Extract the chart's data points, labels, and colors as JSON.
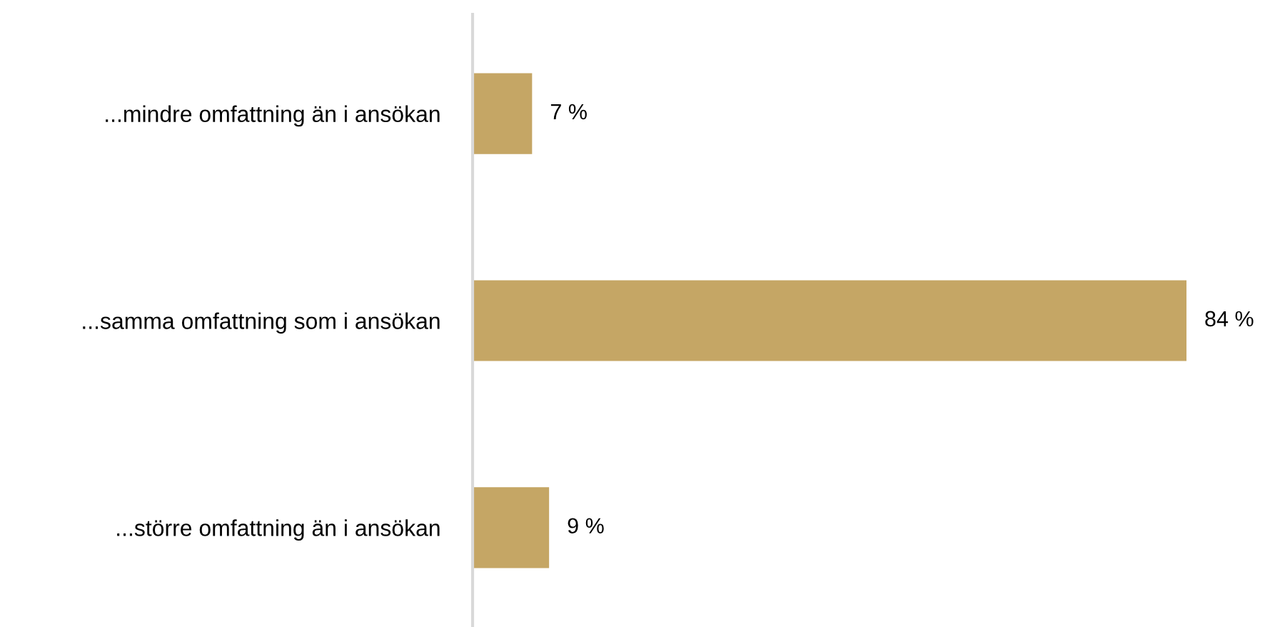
{
  "chart_data": {
    "type": "bar",
    "orientation": "horizontal",
    "categories": [
      "...mindre omfattning än i ansökan",
      "...samma omfattning som i ansökan",
      "...större omfattning än i ansökan"
    ],
    "values": [
      7,
      84,
      9
    ],
    "value_labels": [
      "7 %",
      "84 %",
      "9 %"
    ],
    "color": "#c5a665",
    "grid": false,
    "legend": false
  }
}
